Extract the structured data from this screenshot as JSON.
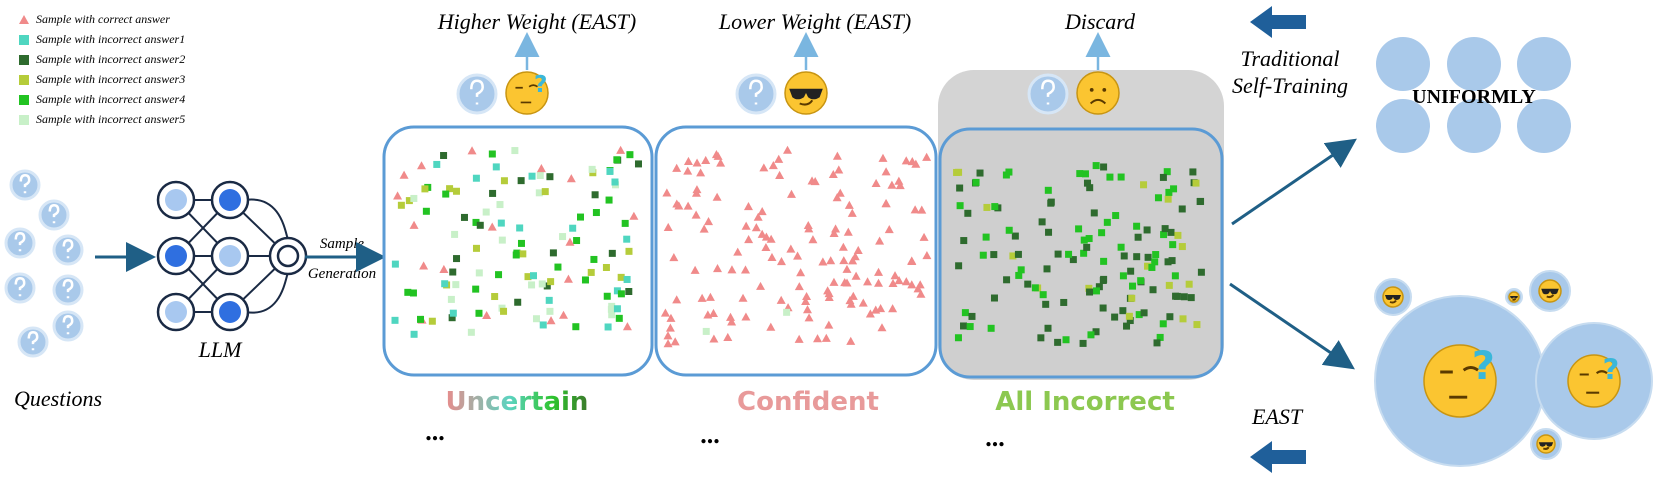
{
  "legend": [
    "Sample with correct answer",
    "Sample with incorrect answer1",
    "Sample with incorrect answer2",
    "Sample with incorrect answer3",
    "Sample with incorrect answer4",
    "Sample with incorrect answer5"
  ],
  "weights": [
    "Higher Weight (EAST)",
    "Lower Weight (EAST)",
    "Discard"
  ],
  "questions": "Questions",
  "llm": "LLM",
  "sample_generation": [
    "Sample",
    "Generation"
  ],
  "categories": [
    "Uncertain",
    "Confident",
    "All Incorrect"
  ],
  "ellipses": [
    "...",
    "...",
    "..."
  ],
  "traditional": [
    "Traditional",
    "Self-Training"
  ],
  "uniformly": "UNIFORMLY",
  "east": "EAST"
}
